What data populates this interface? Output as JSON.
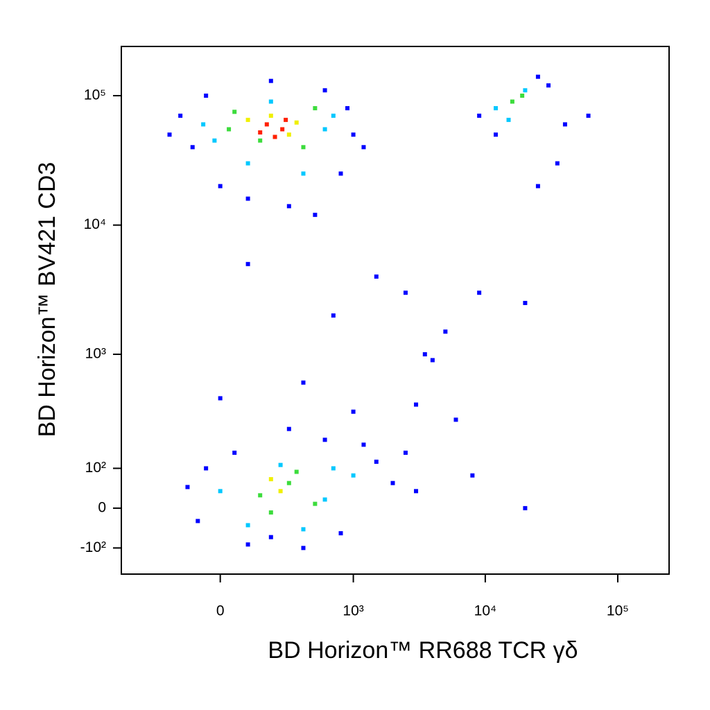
{
  "chart_data": {
    "type": "scatter",
    "x_label": "BD Horizon™ RR688 TCR γδ",
    "y_label": "BD Horizon™ BV421 CD3",
    "xscale": "biexponential",
    "yscale": "biexponential",
    "xlim": [
      -540,
      244000
    ],
    "ylim": [
      -190,
      240000
    ],
    "xticks": [
      0,
      {
        "value": 1000,
        "label": "10³"
      },
      {
        "value": 10000,
        "label": "10⁴"
      },
      {
        "value": 100000,
        "label": "10⁵"
      }
    ],
    "yticks": [
      {
        "value": -100,
        "label": "-10²"
      },
      0,
      {
        "value": 100,
        "label": "10²"
      },
      {
        "value": 1000,
        "label": "10³"
      },
      {
        "value": 10000,
        "label": "10⁴"
      },
      {
        "value": 100000,
        "label": "10⁵"
      }
    ],
    "series": [
      {
        "color": "#0000ff",
        "x": [
          -150,
          -100,
          1000,
          800,
          0,
          300,
          500,
          -50,
          600,
          200,
          1200,
          -200,
          100,
          900,
          -120,
          -80,
          2000,
          1500,
          3000,
          100,
          400,
          800,
          50,
          600,
          1200,
          2500,
          -50,
          300,
          200,
          9000,
          30000,
          12000,
          25000,
          40000,
          60000,
          35000,
          25000,
          100,
          700,
          1500,
          2500,
          5000,
          4000,
          3000,
          6000,
          8000,
          20000,
          9000,
          20000,
          3500,
          400,
          0,
          1000
        ],
        "values": [
          70000,
          40000,
          50000,
          25000,
          20000,
          14000,
          12000,
          100000,
          110000,
          130000,
          40000,
          50000,
          16000,
          80000,
          50,
          -30,
          60,
          120,
          40,
          -90,
          -100,
          -60,
          150,
          200,
          180,
          150,
          100,
          250,
          -70,
          70000,
          120000,
          50000,
          140000,
          60000,
          70000,
          30000,
          20000,
          5000,
          2000,
          4000,
          3000,
          1500,
          900,
          400,
          300,
          80,
          0,
          3000,
          2500,
          1000,
          600,
          450,
          350
        ]
      },
      {
        "color": "#00c8ff",
        "x": [
          -60,
          600,
          200,
          100,
          400,
          700,
          -20,
          0,
          600,
          1000,
          250,
          100,
          400,
          700,
          12000,
          20000,
          15000
        ],
        "values": [
          60000,
          55000,
          90000,
          30000,
          25000,
          70000,
          45000,
          40,
          20,
          80,
          110,
          -40,
          -50,
          100,
          80000,
          110000,
          65000
        ]
      },
      {
        "color": "#3cdc3c",
        "x": [
          50,
          400,
          150,
          500,
          30,
          150,
          300,
          500,
          200,
          350,
          16000,
          19000
        ],
        "values": [
          75000,
          40000,
          45000,
          80000,
          55000,
          30,
          60,
          10,
          -10,
          90,
          90000,
          100000
        ]
      },
      {
        "color": "#f0f000",
        "x": [
          100,
          300,
          200,
          350,
          250,
          200
        ],
        "values": [
          65000,
          50000,
          70000,
          62000,
          40,
          70
        ]
      },
      {
        "color": "#ff2000",
        "x": [
          180,
          260,
          220,
          280,
          150
        ],
        "values": [
          60000,
          55000,
          48000,
          65000,
          52000
        ]
      }
    ]
  }
}
